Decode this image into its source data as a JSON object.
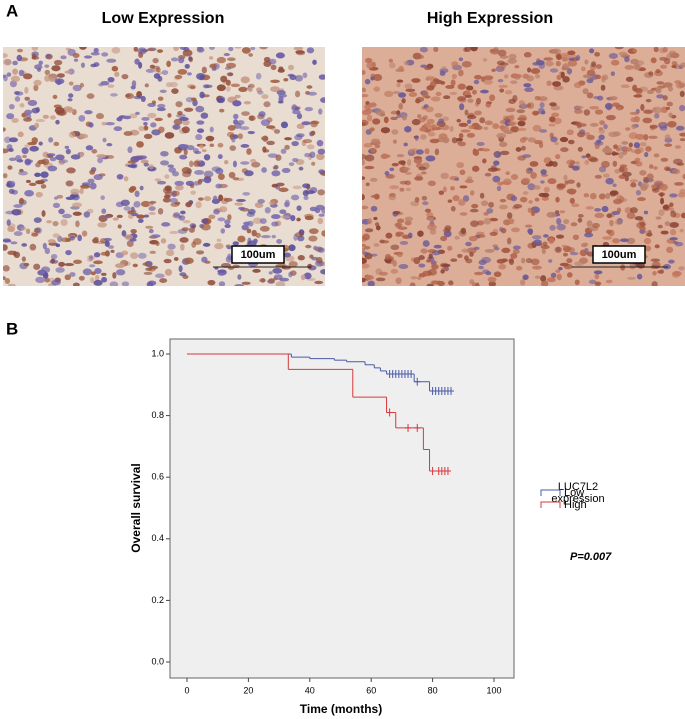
{
  "panel_a": {
    "label": "A",
    "left_title": "Low Expression",
    "right_title": "High Expression",
    "left_scale_label": "100um",
    "right_scale_label": "100um"
  },
  "chart_data": {
    "type": "km",
    "panel_label": "B",
    "x_label": "Time (months)",
    "y_label": "Overall survival",
    "xlim": [
      0,
      100
    ],
    "xticks": [
      0,
      20,
      40,
      60,
      80,
      100
    ],
    "ylim": [
      0,
      1
    ],
    "yticks": [
      {
        "value": 0,
        "label": "0.0"
      },
      0.2,
      0.4,
      0.6,
      0.8,
      {
        "value": 1,
        "label": "1.0"
      }
    ],
    "legend_title": [
      "LUC7L2",
      "expression"
    ],
    "annotation": "P=0.007",
    "series": [
      {
        "name": "Low",
        "color": "#4a5aa8",
        "x": [
          0,
          34,
          40,
          48,
          52,
          58,
          61,
          63,
          65,
          74,
          79,
          86
        ],
        "values": [
          1.0,
          0.99,
          0.985,
          0.98,
          0.975,
          0.965,
          0.955,
          0.945,
          0.935,
          0.91,
          0.88,
          0.88
        ],
        "censored_x": [
          66,
          67,
          68,
          69,
          70,
          71,
          72,
          73,
          75,
          80,
          81,
          82,
          83,
          84,
          85,
          86
        ],
        "censored_values": [
          0.935,
          0.935,
          0.935,
          0.935,
          0.935,
          0.935,
          0.935,
          0.935,
          0.91,
          0.88,
          0.88,
          0.88,
          0.88,
          0.88,
          0.88,
          0.88
        ]
      },
      {
        "name": "High",
        "color": "#d9373a",
        "x": [
          0,
          33,
          54,
          65,
          68,
          77,
          79,
          85
        ],
        "values": [
          1.0,
          0.95,
          0.86,
          0.81,
          0.76,
          0.69,
          0.62,
          0.62
        ],
        "censored_x": [
          66,
          72,
          75,
          80,
          82,
          83,
          84,
          85
        ],
        "censored_values": [
          0.81,
          0.76,
          0.76,
          0.62,
          0.62,
          0.62,
          0.62,
          0.62
        ]
      }
    ]
  }
}
